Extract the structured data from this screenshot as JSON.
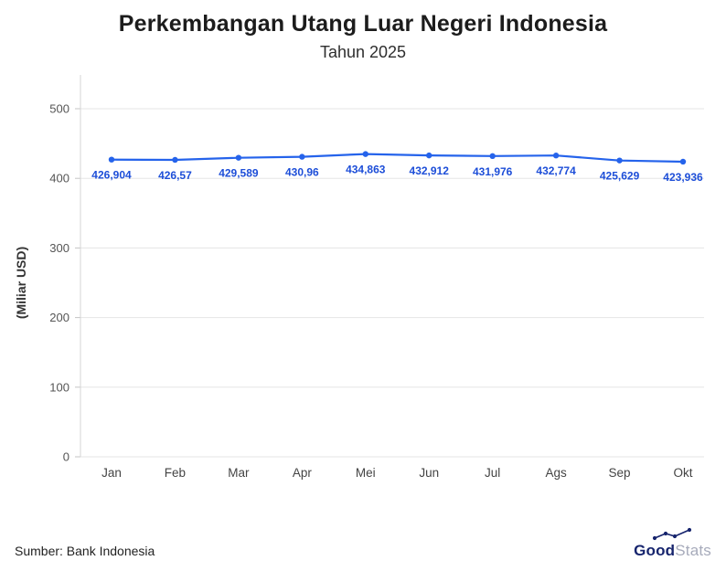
{
  "header": {
    "title": "Perkembangan Utang Luar Negeri Indonesia",
    "subtitle": "Tahun 2025"
  },
  "footer": {
    "source": "Sumber: Bank Indonesia",
    "logo_primary": "Good",
    "logo_secondary": "Stats"
  },
  "chart_data": {
    "type": "line",
    "title": "Perkembangan Utang Luar Negeri Indonesia",
    "subtitle": "Tahun 2025",
    "categories": [
      "Jan",
      "Feb",
      "Mar",
      "Apr",
      "Mei",
      "Jun",
      "Jul",
      "Ags",
      "Sep",
      "Okt"
    ],
    "values": [
      426.904,
      426.57,
      429.589,
      430.96,
      434.863,
      432.912,
      431.976,
      432.774,
      425.629,
      423.936
    ],
    "point_labels": [
      "426,904",
      "426,57",
      "429,589",
      "430,96",
      "434,863",
      "432,912",
      "431,976",
      "432,774",
      "425,629",
      "423,936"
    ],
    "xlabel": "",
    "ylabel": "(Miliar USD)",
    "ylim": [
      0,
      500
    ],
    "yticks": [
      0,
      100,
      200,
      300,
      400,
      500
    ],
    "grid": true,
    "legend_position": "none",
    "line_color": "#2563eb",
    "point_color": "#2563eb",
    "label_color": "#1d4ed8",
    "grid_color": "#e5e5e5",
    "axis_color": "#d6d6d6",
    "tick_color": "#c4c4c4",
    "tick_label_color": "#555555",
    "x_label_color": "#444444"
  }
}
